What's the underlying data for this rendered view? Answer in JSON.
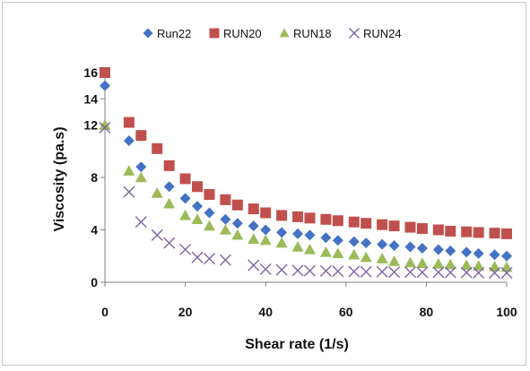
{
  "chart_data": {
    "type": "scatter",
    "title": "",
    "xlabel": "Shear rate (1/s)",
    "ylabel": "Viscosity (pa.s)",
    "xlim": [
      0,
      100
    ],
    "ylim": [
      0,
      16
    ],
    "xticks": [
      0,
      20,
      40,
      60,
      80,
      100
    ],
    "yticks": [
      0,
      4,
      8,
      12,
      14,
      16
    ],
    "grid": false,
    "legend_position": "top",
    "series": [
      {
        "name": "Run22",
        "color": "#4472c4",
        "marker": "diamond",
        "points": [
          [
            0,
            15.0
          ],
          [
            6,
            10.8
          ],
          [
            9,
            8.8
          ],
          [
            16,
            7.3
          ],
          [
            20,
            6.4
          ],
          [
            23,
            5.8
          ],
          [
            26,
            5.3
          ],
          [
            30,
            4.8
          ],
          [
            33,
            4.5
          ],
          [
            37,
            4.3
          ],
          [
            40,
            4.0
          ],
          [
            44,
            3.8
          ],
          [
            48,
            3.7
          ],
          [
            51,
            3.6
          ],
          [
            55,
            3.4
          ],
          [
            58,
            3.2
          ],
          [
            62,
            3.1
          ],
          [
            65,
            3.0
          ],
          [
            69,
            2.9
          ],
          [
            72,
            2.8
          ],
          [
            76,
            2.7
          ],
          [
            79,
            2.6
          ],
          [
            83,
            2.5
          ],
          [
            86,
            2.4
          ],
          [
            90,
            2.3
          ],
          [
            93,
            2.2
          ],
          [
            97,
            2.1
          ],
          [
            100,
            2.0
          ]
        ]
      },
      {
        "name": "RUN20",
        "color": "#c0504d",
        "marker": "square",
        "points": [
          [
            0,
            16.0
          ],
          [
            6,
            12.2
          ],
          [
            9,
            11.2
          ],
          [
            13,
            10.2
          ],
          [
            16,
            8.9
          ],
          [
            20,
            7.9
          ],
          [
            23,
            7.3
          ],
          [
            26,
            6.7
          ],
          [
            30,
            6.3
          ],
          [
            33,
            5.9
          ],
          [
            37,
            5.6
          ],
          [
            40,
            5.3
          ],
          [
            44,
            5.1
          ],
          [
            48,
            5.0
          ],
          [
            51,
            4.9
          ],
          [
            55,
            4.8
          ],
          [
            58,
            4.7
          ],
          [
            62,
            4.6
          ],
          [
            65,
            4.5
          ],
          [
            69,
            4.4
          ],
          [
            72,
            4.3
          ],
          [
            76,
            4.2
          ],
          [
            79,
            4.1
          ],
          [
            83,
            4.0
          ],
          [
            86,
            3.9
          ],
          [
            90,
            3.85
          ],
          [
            93,
            3.8
          ],
          [
            97,
            3.75
          ],
          [
            100,
            3.7
          ]
        ]
      },
      {
        "name": "RUN18",
        "color": "#9bbb59",
        "marker": "triangle",
        "points": [
          [
            0,
            12.0
          ],
          [
            6,
            8.5
          ],
          [
            9,
            8.0
          ],
          [
            13,
            6.8
          ],
          [
            16,
            6.0
          ],
          [
            20,
            5.1
          ],
          [
            23,
            4.8
          ],
          [
            26,
            4.3
          ],
          [
            30,
            4.0
          ],
          [
            33,
            3.6
          ],
          [
            37,
            3.3
          ],
          [
            40,
            3.2
          ],
          [
            44,
            3.0
          ],
          [
            48,
            2.7
          ],
          [
            51,
            2.5
          ],
          [
            55,
            2.3
          ],
          [
            58,
            2.2
          ],
          [
            62,
            2.1
          ],
          [
            65,
            1.9
          ],
          [
            69,
            1.8
          ],
          [
            72,
            1.6
          ],
          [
            76,
            1.5
          ],
          [
            79,
            1.45
          ],
          [
            83,
            1.4
          ],
          [
            86,
            1.35
          ],
          [
            90,
            1.3
          ],
          [
            93,
            1.25
          ],
          [
            97,
            1.2
          ],
          [
            100,
            1.15
          ]
        ]
      },
      {
        "name": "RUN24",
        "color": "#8064a2",
        "marker": "x",
        "points": [
          [
            0,
            11.8
          ],
          [
            6,
            6.9
          ],
          [
            9,
            4.6
          ],
          [
            13,
            3.6
          ],
          [
            16,
            3.0
          ],
          [
            20,
            2.5
          ],
          [
            23,
            1.9
          ],
          [
            26,
            1.8
          ],
          [
            30,
            1.7
          ],
          [
            37,
            1.3
          ],
          [
            40,
            1.0
          ],
          [
            44,
            0.95
          ],
          [
            48,
            0.9
          ],
          [
            51,
            0.88
          ],
          [
            55,
            0.86
          ],
          [
            58,
            0.84
          ],
          [
            62,
            0.82
          ],
          [
            65,
            0.8
          ],
          [
            69,
            0.8
          ],
          [
            72,
            0.78
          ],
          [
            76,
            0.78
          ],
          [
            79,
            0.76
          ],
          [
            83,
            0.76
          ],
          [
            86,
            0.75
          ],
          [
            90,
            0.74
          ],
          [
            93,
            0.73
          ],
          [
            97,
            0.72
          ],
          [
            100,
            0.72
          ]
        ]
      }
    ]
  }
}
